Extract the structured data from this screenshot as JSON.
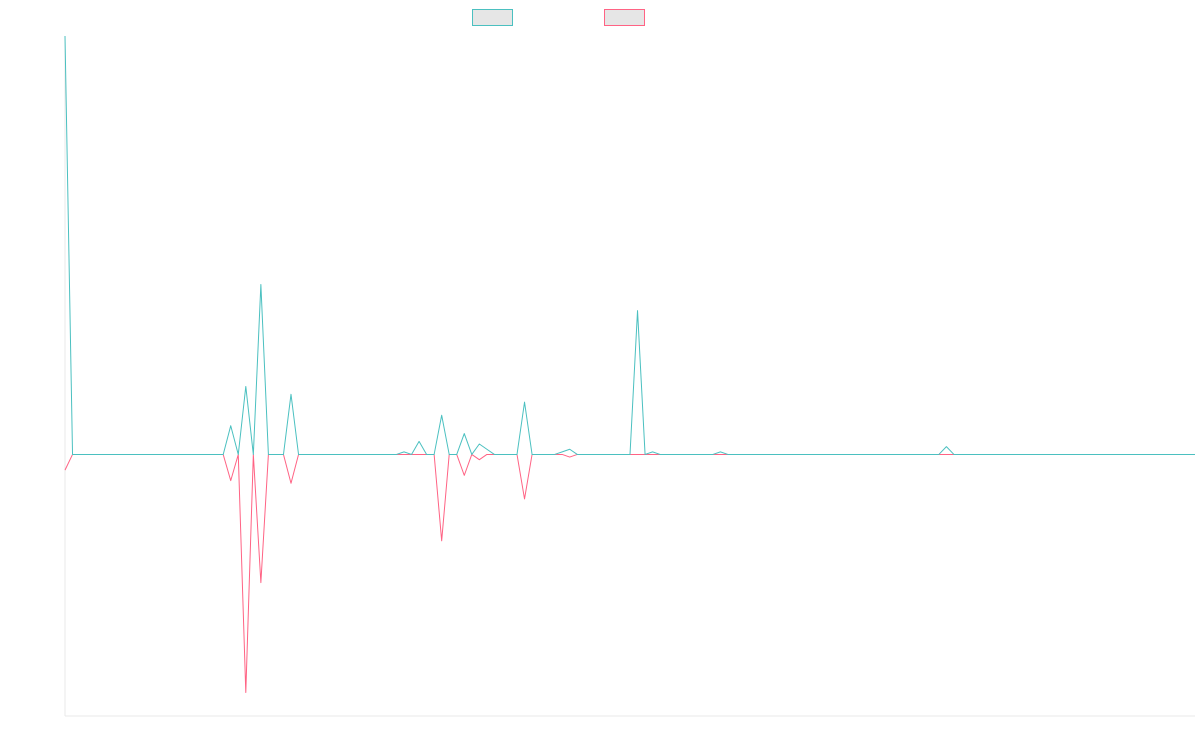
{
  "chart_data": {
    "type": "line",
    "title": "",
    "xlabel": "",
    "ylabel": "",
    "grid": false,
    "legend_placement": "top-center",
    "x": [
      0,
      1,
      2,
      3,
      4,
      5,
      6,
      7,
      8,
      9,
      10,
      11,
      12,
      13,
      14,
      15,
      16,
      17,
      18,
      19,
      20,
      21,
      22,
      23,
      24,
      25,
      26,
      27,
      28,
      29,
      30,
      31,
      32,
      33,
      34,
      35,
      36,
      37,
      38,
      39,
      40,
      41,
      42,
      43,
      44,
      45,
      46,
      47,
      48,
      49,
      50,
      51,
      52,
      53,
      54,
      55,
      56,
      57,
      58,
      59,
      60,
      61,
      62,
      63,
      64,
      65,
      66,
      67,
      68,
      69,
      70,
      71,
      72,
      73,
      74,
      75,
      76,
      77,
      78,
      79,
      80,
      81,
      82,
      83,
      84,
      85,
      86,
      87,
      88,
      89,
      90,
      91,
      92,
      93,
      94,
      95,
      96,
      97,
      98,
      99,
      100,
      101,
      102,
      103,
      104,
      105,
      106,
      107,
      108,
      109,
      110,
      111,
      112,
      113,
      114,
      115,
      116,
      117,
      118,
      119,
      120,
      121,
      122,
      123,
      124,
      125,
      126,
      127,
      128,
      129,
      130,
      131,
      132,
      133,
      134,
      135,
      136,
      137,
      138,
      139,
      140,
      141,
      142,
      143,
      144,
      145,
      146,
      147,
      148,
      149,
      150
    ],
    "ylim": [
      -100,
      160
    ],
    "colors": [
      "#4bc0c0",
      "#ff6384"
    ],
    "series": [
      {
        "values": [
          160,
          0,
          0,
          0,
          0,
          0,
          0,
          0,
          0,
          0,
          0,
          0,
          0,
          0,
          0,
          0,
          0,
          0,
          0,
          0,
          0,
          0,
          11,
          0,
          26,
          0,
          65,
          0,
          0,
          0,
          23,
          0,
          0,
          0,
          0,
          0,
          0,
          0,
          0,
          0,
          0,
          0,
          0,
          0,
          0,
          1,
          0,
          5,
          0,
          0,
          15,
          0,
          0,
          8,
          0,
          4,
          2,
          0,
          0,
          0,
          0,
          20,
          0,
          0,
          0,
          0,
          1,
          2,
          0,
          0,
          0,
          0,
          0,
          0,
          0,
          0,
          55,
          0,
          1,
          0,
          0,
          0,
          0,
          0,
          0,
          0,
          0,
          1,
          0,
          0,
          0,
          0,
          0,
          0,
          0,
          0,
          0,
          0,
          0,
          0,
          0,
          0,
          0,
          0,
          0,
          0,
          0,
          0,
          0,
          0,
          0,
          0,
          0,
          0,
          0,
          0,
          0,
          3,
          0,
          0,
          0,
          0,
          0,
          0,
          0,
          0,
          0,
          0,
          0,
          0,
          0,
          0,
          0,
          0,
          0,
          0,
          0,
          0,
          0,
          0,
          0,
          0,
          0,
          0,
          0,
          0,
          0,
          0,
          0,
          0,
          0
        ]
      },
      {
        "values": [
          -6,
          0,
          0,
          0,
          0,
          0,
          0,
          0,
          0,
          0,
          0,
          0,
          0,
          0,
          0,
          0,
          0,
          0,
          0,
          0,
          0,
          0,
          -10,
          0,
          -91,
          0,
          -49,
          0,
          0,
          0,
          -11,
          0,
          0,
          0,
          0,
          0,
          0,
          0,
          0,
          0,
          0,
          0,
          0,
          0,
          0,
          0,
          0,
          0,
          0,
          0,
          -33,
          0,
          0,
          -8,
          0,
          -2,
          0,
          0,
          0,
          0,
          0,
          -17,
          0,
          0,
          0,
          0,
          0,
          -1,
          0,
          0,
          0,
          0,
          0,
          0,
          0,
          0,
          0,
          0,
          0,
          0,
          0,
          0,
          0,
          0,
          0,
          0,
          0,
          0,
          0,
          0,
          0,
          0,
          0,
          0,
          0,
          0,
          0,
          0,
          0,
          0,
          0,
          0,
          0,
          0,
          0,
          0,
          0,
          0,
          0,
          0,
          0,
          0,
          0,
          0,
          0,
          0,
          0,
          0,
          0,
          0,
          0,
          0,
          0,
          0,
          0,
          0,
          0,
          0,
          0,
          0,
          0,
          0,
          0,
          0,
          0,
          0,
          0,
          0,
          0,
          0,
          0,
          0,
          0,
          0,
          0,
          0,
          0,
          0,
          0,
          0,
          0
        ]
      }
    ]
  }
}
